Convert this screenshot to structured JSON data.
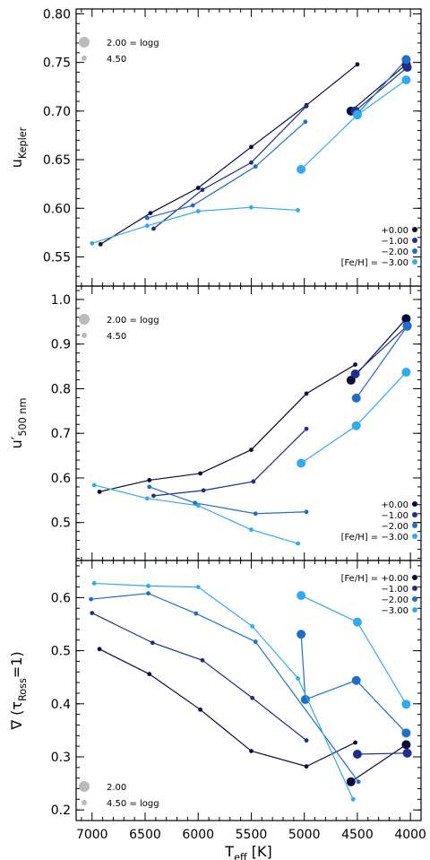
{
  "colors": {
    "feh_p0": "#0b0b3b",
    "feh_m1": "#1f2f8a",
    "feh_m2": "#1f6fc6",
    "feh_m3": "#33aaee",
    "logg_marker": "#bbbbbb"
  },
  "chart_data": [
    {
      "type": "line",
      "panel": "top",
      "ylabel_main": "u",
      "ylabel_sub": "Kepler",
      "ylim": [
        0.52,
        0.805
      ],
      "yticks": [
        "0.55",
        "0.60",
        "0.65",
        "0.70",
        "0.75",
        "0.80"
      ],
      "marker_legend": {
        "big": "2.00 = logg",
        "small": "4.50",
        "position": "top-left"
      },
      "feh_legend": {
        "labels": [
          "+0.00",
          "−1.00",
          "−2.00",
          "[Fe/H] = −3.00"
        ],
        "position": "bottom-right"
      },
      "series": [
        {
          "name": "+0.00",
          "color_key": "feh_p0",
          "small": [
            [
              6920,
              0.563
            ],
            [
              6450,
              0.595
            ],
            [
              6000,
              0.621
            ],
            [
              5500,
              0.663
            ],
            [
              4980,
              0.706
            ],
            [
              4500,
              0.748
            ]
          ],
          "big": [
            [
              4560,
              0.7
            ],
            [
              4040,
              0.748
            ]
          ]
        },
        {
          "name": "−1.00",
          "color_key": "feh_m1",
          "small": [
            [
              6420,
              0.579
            ],
            [
              5960,
              0.619
            ],
            [
              5500,
              0.647
            ],
            [
              4980,
              0.705
            ]
          ],
          "big": [
            [
              4520,
              0.7
            ],
            [
              4030,
              0.745
            ]
          ]
        },
        {
          "name": "−2.00",
          "color_key": "feh_m2",
          "small": [
            [
              6480,
              0.59
            ],
            [
              6050,
              0.603
            ],
            [
              5460,
              0.643
            ],
            [
              4990,
              0.689
            ]
          ],
          "big": [
            [
              4500,
              0.697
            ],
            [
              4040,
              0.753
            ]
          ]
        },
        {
          "name": "−3.00",
          "color_key": "feh_m3",
          "small": [
            [
              7000,
              0.564
            ],
            [
              6480,
              0.582
            ],
            [
              6000,
              0.597
            ],
            [
              5500,
              0.601
            ],
            [
              5060,
              0.598
            ]
          ],
          "big": [
            [
              5030,
              0.64
            ],
            [
              4500,
              0.696
            ],
            [
              4040,
              0.732
            ]
          ]
        }
      ]
    },
    {
      "type": "line",
      "panel": "middle",
      "ylabel_main": "u′",
      "ylabel_sub": "500 nm",
      "ylim": [
        0.415,
        1.03
      ],
      "yticks": [
        "0.5",
        "0.6",
        "0.7",
        "0.8",
        "0.9",
        "1.0"
      ],
      "marker_legend": {
        "big": "2.00 = logg",
        "small": "4.50",
        "position": "top-left"
      },
      "feh_legend": {
        "labels": [
          "+0.00",
          "−1.00",
          "−2.00",
          "[Fe/H] = −3.00"
        ],
        "position": "bottom-right"
      },
      "series": [
        {
          "name": "+0.00",
          "color_key": "feh_p0",
          "small": [
            [
              6930,
              0.569
            ],
            [
              6460,
              0.595
            ],
            [
              5980,
              0.61
            ],
            [
              5500,
              0.663
            ],
            [
              4980,
              0.789
            ],
            [
              4520,
              0.854
            ]
          ],
          "big": [
            [
              4560,
              0.819
            ],
            [
              4040,
              0.957
            ]
          ]
        },
        {
          "name": "−1.00",
          "color_key": "feh_m1",
          "small": [
            [
              6420,
              0.56
            ],
            [
              5950,
              0.572
            ],
            [
              5480,
              0.592
            ],
            [
              4980,
              0.71
            ]
          ],
          "big": [
            [
              4520,
              0.833
            ],
            [
              4030,
              0.941
            ]
          ]
        },
        {
          "name": "−2.00",
          "color_key": "feh_m2",
          "small": [
            [
              6460,
              0.58
            ],
            [
              6030,
              0.544
            ],
            [
              5460,
              0.52
            ],
            [
              4980,
              0.524
            ]
          ],
          "big": [
            [
              4510,
              0.779
            ],
            [
              4030,
              0.94
            ]
          ]
        },
        {
          "name": "−3.00",
          "color_key": "feh_m3",
          "small": [
            [
              6980,
              0.584
            ],
            [
              6480,
              0.554
            ],
            [
              6000,
              0.538
            ],
            [
              5500,
              0.484
            ],
            [
              5060,
              0.453
            ]
          ],
          "big": [
            [
              5030,
              0.633
            ],
            [
              4510,
              0.717
            ],
            [
              4040,
              0.837
            ]
          ]
        }
      ]
    },
    {
      "type": "line",
      "panel": "bottom",
      "ylabel_main": "∇ (τ",
      "ylabel_sub": "Ross",
      "ylabel_end": "=1)",
      "ylim": [
        0.18,
        0.67
      ],
      "yticks": [
        "0.2",
        "0.3",
        "0.4",
        "0.5",
        "0.6"
      ],
      "xlabel_main": "T",
      "xlabel_sub": "eff",
      "xlabel_end": " [K]",
      "xlim": [
        7150,
        3900
      ],
      "xticks": [
        "7000",
        "6500",
        "6000",
        "5500",
        "5000",
        "4500",
        "4000"
      ],
      "marker_legend": {
        "big": "2.00",
        "small": "4.50 = logg",
        "position": "bottom-left"
      },
      "feh_legend": {
        "labels": [
          "[Fe/H] = +0.00",
          "−1.00",
          "−2.00",
          "−3.00"
        ],
        "position": "top-right"
      },
      "series": [
        {
          "name": "+0.00",
          "color_key": "feh_p0",
          "small": [
            [
              6930,
              0.503
            ],
            [
              6460,
              0.456
            ],
            [
              5980,
              0.389
            ],
            [
              5500,
              0.311
            ],
            [
              4980,
              0.282
            ],
            [
              4520,
              0.327
            ]
          ],
          "big": [
            [
              4560,
              0.253
            ],
            [
              4040,
              0.323
            ]
          ]
        },
        {
          "name": "−1.00",
          "color_key": "feh_m1",
          "small": [
            [
              7000,
              0.571
            ],
            [
              6430,
              0.515
            ],
            [
              5960,
              0.482
            ],
            [
              5490,
              0.411
            ],
            [
              4980,
              0.331
            ]
          ],
          "big": [
            [
              4500,
              0.305
            ],
            [
              4030,
              0.307
            ]
          ]
        },
        {
          "name": "−2.00",
          "color_key": "feh_m2",
          "small": [
            [
              7010,
              0.597
            ],
            [
              6470,
              0.608
            ],
            [
              6020,
              0.57
            ],
            [
              5460,
              0.517
            ],
            [
              4490,
              0.253
            ]
          ],
          "big": [
            [
              5030,
              0.531
            ],
            [
              4990,
              0.408
            ],
            [
              4510,
              0.444
            ],
            [
              4040,
              0.345
            ]
          ]
        },
        {
          "name": "−3.00",
          "color_key": "feh_m3",
          "small": [
            [
              6980,
              0.627
            ],
            [
              6470,
              0.622
            ],
            [
              6000,
              0.62
            ],
            [
              5490,
              0.546
            ],
            [
              5060,
              0.448
            ],
            [
              4540,
              0.22
            ]
          ],
          "big": [
            [
              5030,
              0.604
            ],
            [
              4500,
              0.554
            ],
            [
              4040,
              0.399
            ]
          ]
        }
      ]
    }
  ]
}
